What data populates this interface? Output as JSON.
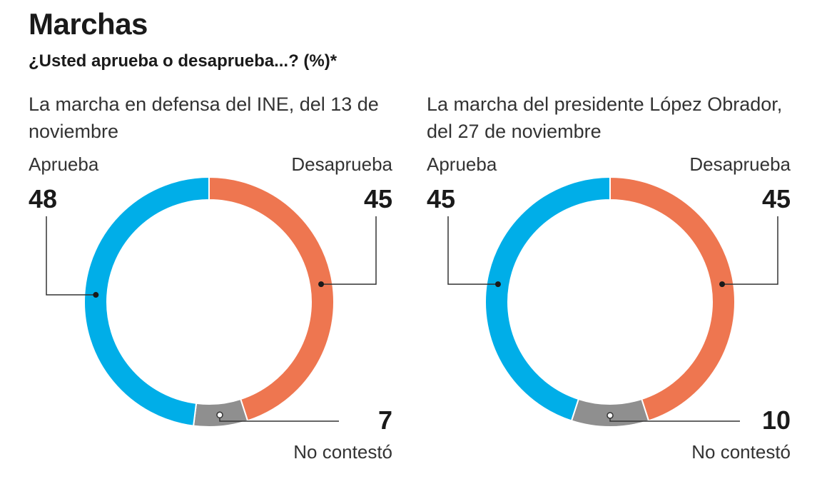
{
  "header": {
    "title": "Marchas",
    "subtitle": "¿Usted aprueba o desaprueba...? (%)*"
  },
  "chart_data": [
    {
      "type": "pie",
      "title": "La marcha en defensa del INE, del 13 de noviembre",
      "slices": [
        {
          "name": "Desaprueba",
          "value": 45,
          "color": "#EE7650"
        },
        {
          "name": "No contestó",
          "value": 7,
          "color": "#8F8F8F"
        },
        {
          "name": "Aprueba",
          "value": 48,
          "color": "#00AEE8"
        }
      ]
    },
    {
      "type": "pie",
      "title": "La marcha del presidente López Obrador, del 27 de noviembre",
      "slices": [
        {
          "name": "Desaprueba",
          "value": 45,
          "color": "#EE7650"
        },
        {
          "name": "No contestó",
          "value": 10,
          "color": "#8F8F8F"
        },
        {
          "name": "Aprueba",
          "value": 45,
          "color": "#00AEE8"
        }
      ]
    }
  ]
}
